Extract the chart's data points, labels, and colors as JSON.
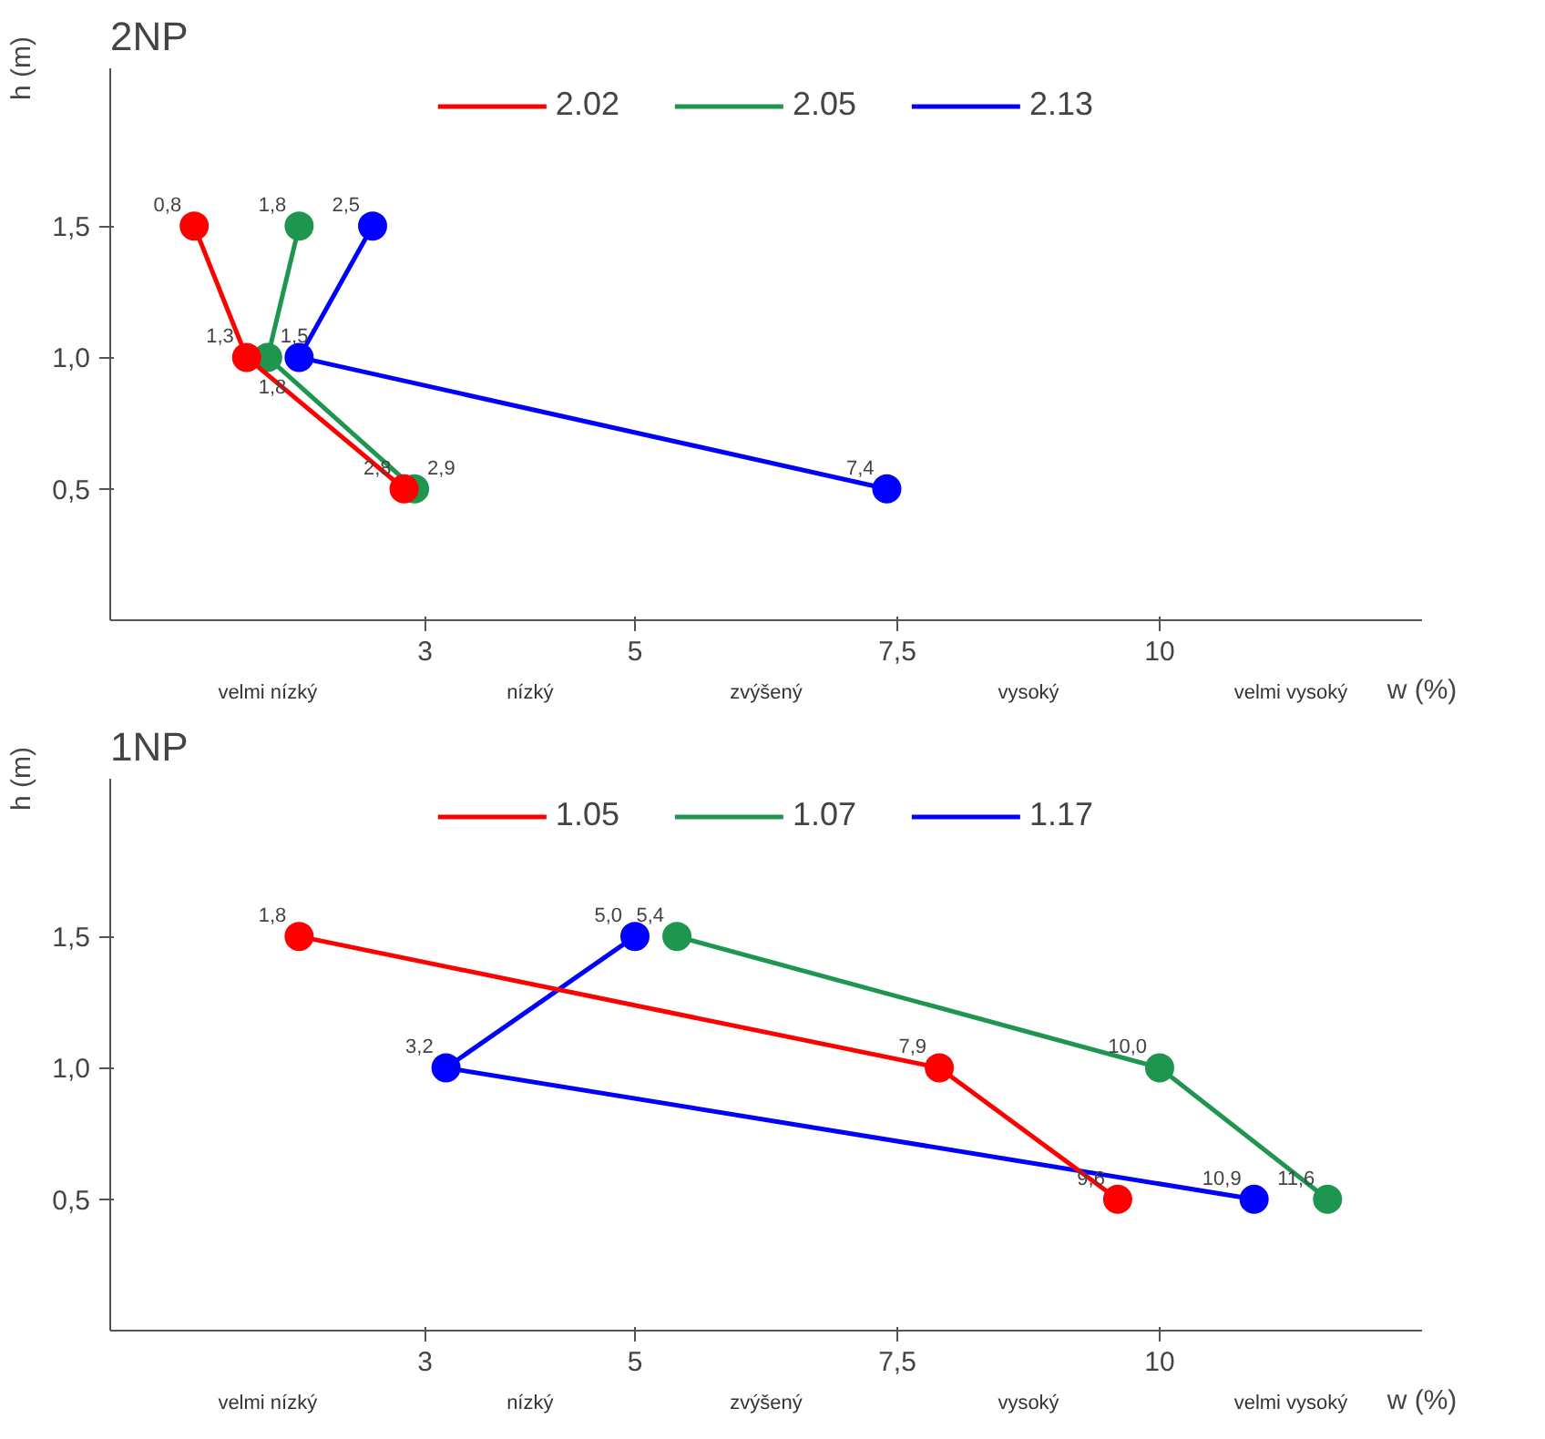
{
  "chart_data": [
    {
      "type": "line",
      "title": "2NP",
      "xlabel": "w (%)",
      "ylabel": "h (m)",
      "xlim": [
        0,
        12.5
      ],
      "ylim": [
        0,
        2.1
      ],
      "xticks": [
        {
          "value": 3,
          "label": "3"
        },
        {
          "value": 5,
          "label": "5"
        },
        {
          "value": 7.5,
          "label": "7,5"
        },
        {
          "value": 10,
          "label": "10"
        }
      ],
      "yticks": [
        {
          "value": 0.5,
          "label": "0,5"
        },
        {
          "value": 1.0,
          "label": "1,0"
        },
        {
          "value": 1.5,
          "label": "1,5"
        }
      ],
      "annotations": [
        "velmi nízký",
        "nízký",
        "zvýšený",
        "vysoký",
        "velmi vysoký",
        {
          "text": "0,8",
          "x": 0.8,
          "y": 1.5
        },
        {
          "text": "1,3",
          "x": 1.3,
          "y": 1.0
        },
        {
          "text": "2,8",
          "x": 2.8,
          "y": 0.5
        },
        {
          "text": "1,8",
          "x": 1.8,
          "y": 1.5
        },
        {
          "text": "1,5",
          "x": 1.5,
          "y": 1.0
        },
        {
          "text": "2,9",
          "x": 2.9,
          "y": 0.5
        },
        {
          "text": "2,5",
          "x": 2.5,
          "y": 1.5
        },
        {
          "text": "1,8",
          "x": 1.8,
          "y": 1.0
        },
        {
          "text": "7,4",
          "x": 7.4,
          "y": 0.5
        }
      ],
      "marker": "circle",
      "legend": "top",
      "grid": false,
      "series": [
        {
          "name": "2.02",
          "color": "#ff0000",
          "x": [
            0.8,
            1.3,
            2.8
          ],
          "values": [
            1.5,
            1.0,
            0.5
          ]
        },
        {
          "name": "2.05",
          "color": "#1e9650",
          "x": [
            1.8,
            1.5,
            2.9
          ],
          "values": [
            1.5,
            1.0,
            0.5
          ]
        },
        {
          "name": "2.13",
          "color": "#0000ff",
          "x": [
            2.5,
            1.8,
            7.4
          ],
          "values": [
            1.5,
            1.0,
            0.5
          ]
        }
      ]
    },
    {
      "type": "line",
      "title": "1NP",
      "xlabel": "w (%)",
      "ylabel": "h (m)",
      "xlim": [
        0,
        12.5
      ],
      "ylim": [
        0,
        2.1
      ],
      "xticks": [
        {
          "value": 3,
          "label": "3"
        },
        {
          "value": 5,
          "label": "5"
        },
        {
          "value": 7.5,
          "label": "7,5"
        },
        {
          "value": 10,
          "label": "10"
        }
      ],
      "yticks": [
        {
          "value": 0.5,
          "label": "0,5"
        },
        {
          "value": 1.0,
          "label": "1,0"
        },
        {
          "value": 1.5,
          "label": "1,5"
        }
      ],
      "annotations": [
        "velmi nízký",
        "nízký",
        "zvýšený",
        "vysoký",
        "velmi vysoký",
        {
          "text": "1,8",
          "x": 1.8,
          "y": 1.5
        },
        {
          "text": "7,9",
          "x": 7.9,
          "y": 1.0
        },
        {
          "text": "9,6",
          "x": 9.6,
          "y": 0.5
        },
        {
          "text": "5,4",
          "x": 5.4,
          "y": 1.5
        },
        {
          "text": "10,0",
          "x": 10.0,
          "y": 1.0
        },
        {
          "text": "11,6",
          "x": 11.6,
          "y": 0.5
        },
        {
          "text": "5,0",
          "x": 5.0,
          "y": 1.5
        },
        {
          "text": "3,2",
          "x": 3.2,
          "y": 1.0
        },
        {
          "text": "10,9",
          "x": 10.9,
          "y": 0.5
        }
      ],
      "marker": "circle",
      "legend": "top",
      "grid": false,
      "series": [
        {
          "name": "1.05",
          "color": "#ff0000",
          "x": [
            1.8,
            7.9,
            9.6
          ],
          "values": [
            1.5,
            1.0,
            0.5
          ]
        },
        {
          "name": "1.07",
          "color": "#1e9650",
          "x": [
            5.4,
            10.0,
            11.6
          ],
          "values": [
            1.5,
            1.0,
            0.5
          ]
        },
        {
          "name": "1.17",
          "color": "#0000ff",
          "x": [
            5.0,
            3.2,
            10.9
          ],
          "values": [
            1.5,
            1.0,
            0.5
          ]
        }
      ]
    }
  ]
}
